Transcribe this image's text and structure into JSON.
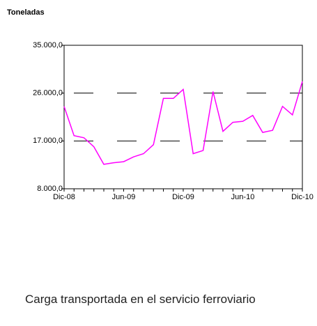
{
  "chart_data": {
    "type": "line",
    "title": "Toneladas",
    "categories": [
      "Dic-08",
      null,
      null,
      null,
      null,
      null,
      "Jun-09",
      null,
      null,
      null,
      null,
      null,
      "Dic-09",
      null,
      null,
      null,
      null,
      null,
      "Jun-10",
      null,
      null,
      null,
      null,
      null,
      "Dic-10"
    ],
    "values": [
      23500,
      18000,
      17600,
      15900,
      12600,
      12900,
      13100,
      14000,
      14600,
      16300,
      25000,
      25000,
      26700,
      14600,
      15200,
      26300,
      18800,
      20500,
      20700,
      21800,
      18600,
      19000,
      23500,
      21900,
      28200
    ],
    "color": "#ff00ff",
    "ylim": [
      8000,
      35000
    ],
    "yticks": [
      {
        "value": 8000,
        "label": "8.000,0"
      },
      {
        "value": 17000,
        "label": "17.000,0"
      },
      {
        "value": 26000,
        "label": "26.000,0"
      },
      {
        "value": 35000,
        "label": "35.000,0"
      }
    ],
    "grid": true
  },
  "caption": "Carga  transportada en el servicio ferroviario"
}
